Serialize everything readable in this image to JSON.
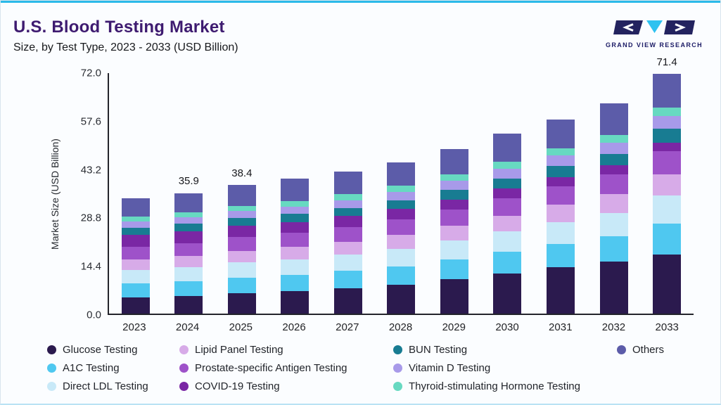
{
  "accent_color": "#2bb9e9",
  "header": {
    "title": "U.S. Blood Testing Market",
    "subtitle": "Size, by Test Type, 2023 - 2033 (USD Billion)"
  },
  "logo": {
    "text": "GRAND VIEW RESEARCH",
    "navy": "#23235f",
    "cyan": "#2ec2f0"
  },
  "chart_data": {
    "type": "bar",
    "stacked": true,
    "title": "U.S. Blood Testing Market Size, by Test Type, 2023 - 2033 (USD Billion)",
    "xlabel": "",
    "ylabel": "Market Size (USD Billion)",
    "ylim": [
      0,
      72
    ],
    "y_ticks": [
      0.0,
      14.4,
      28.8,
      43.2,
      57.6,
      72.0
    ],
    "grid": false,
    "legend_position": "bottom",
    "categories": [
      "2023",
      "2024",
      "2025",
      "2026",
      "2027",
      "2028",
      "2029",
      "2030",
      "2031",
      "2032",
      "2033"
    ],
    "bar_value_labels": {
      "2024": "35.9",
      "2025": "38.4",
      "2033": "71.4"
    },
    "totals": [
      34.4,
      35.9,
      38.4,
      40.3,
      42.4,
      45.0,
      49.0,
      53.5,
      57.8,
      62.5,
      71.4
    ],
    "series": [
      {
        "name": "Glucose Testing",
        "color": "#2b1a4e",
        "values": [
          4.8,
          5.2,
          6.0,
          6.6,
          7.5,
          8.6,
          10.2,
          12.0,
          13.9,
          15.5,
          17.5
        ]
      },
      {
        "name": "A1C Testing",
        "color": "#4fc8f0",
        "values": [
          4.2,
          4.4,
          4.7,
          4.9,
          5.2,
          5.5,
          5.9,
          6.4,
          6.9,
          7.5,
          9.3
        ]
      },
      {
        "name": "Direct LDL Testing",
        "color": "#c8e9f8",
        "values": [
          4.0,
          4.2,
          4.5,
          4.7,
          4.9,
          5.2,
          5.6,
          6.0,
          6.5,
          7.0,
          8.3
        ]
      },
      {
        "name": "Lipid Panel Testing",
        "color": "#d7abe8",
        "values": [
          3.1,
          3.3,
          3.5,
          3.6,
          3.8,
          4.1,
          4.4,
          4.7,
          5.1,
          5.5,
          6.4
        ]
      },
      {
        "name": "Prostate-specific Antigen Testing",
        "color": "#9e52c9",
        "values": [
          3.8,
          3.9,
          4.1,
          4.2,
          4.4,
          4.6,
          4.9,
          5.2,
          5.5,
          5.9,
          6.8
        ]
      },
      {
        "name": "COVID-19 Testing",
        "color": "#7a27a4",
        "values": [
          3.6,
          3.5,
          3.4,
          3.3,
          3.2,
          3.1,
          3.0,
          2.9,
          2.8,
          2.7,
          2.6
        ]
      },
      {
        "name": "BUN Testing",
        "color": "#187c92",
        "values": [
          2.1,
          2.2,
          2.3,
          2.4,
          2.5,
          2.7,
          2.9,
          3.1,
          3.3,
          3.5,
          4.1
        ]
      },
      {
        "name": "Vitamin D Testing",
        "color": "#a89ae9",
        "values": [
          1.9,
          2.0,
          2.1,
          2.2,
          2.3,
          2.5,
          2.7,
          2.9,
          3.1,
          3.3,
          3.8
        ]
      },
      {
        "name": "Thyroid-stimulating Hormone Testing",
        "color": "#67d9c1",
        "values": [
          1.3,
          1.4,
          1.5,
          1.6,
          1.7,
          1.8,
          1.9,
          2.0,
          2.1,
          2.2,
          2.5
        ]
      },
      {
        "name": "Others",
        "color": "#5c5ca9",
        "values": [
          5.6,
          5.8,
          6.3,
          6.8,
          6.9,
          6.9,
          7.5,
          8.3,
          8.6,
          9.4,
          10.1
        ]
      }
    ]
  },
  "legend": {
    "cells": [
      "Glucose Testing",
      "Lipid Panel Testing",
      "BUN Testing",
      "Others",
      "A1C Testing",
      "Prostate-specific Antigen Testing",
      "Vitamin D Testing",
      null,
      "Direct LDL Testing",
      "COVID-19 Testing",
      "Thyroid-stimulating Hormone Testing",
      null
    ]
  }
}
